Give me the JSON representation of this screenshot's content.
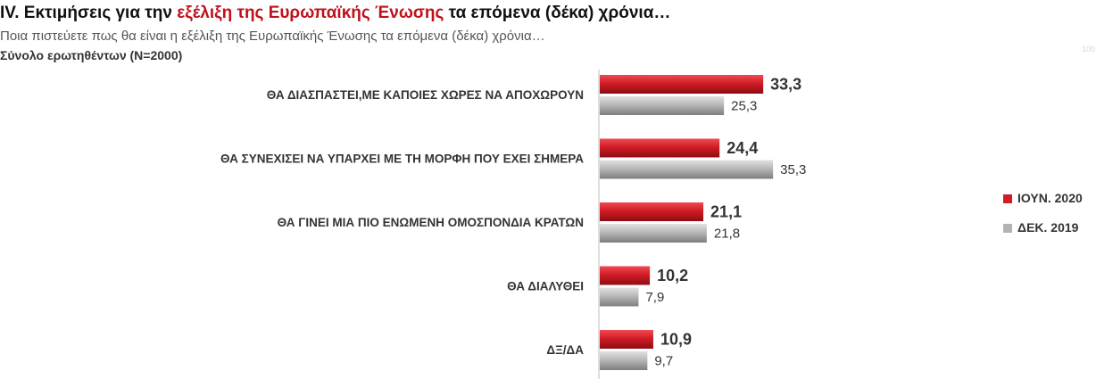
{
  "header": {
    "title_prefix": "IV. Εκτιμήσεις για την ",
    "title_highlight": "εξέλιξη της Ευρωπαϊκής Ένωσης",
    "title_suffix": " τα επόμενα (δέκα) χρόνια…",
    "subtitle": "Ποια πιστεύετε πως θα είναι η εξέλιξη της Ευρωπαϊκής Ένωσης τα επόμενα (δέκα) χρόνια…",
    "base": "Σύνολο ερωτηθέντων (Ν=2000)",
    "corner_text": "100"
  },
  "colors": {
    "highlight": "#c0101a",
    "series_red": "#d11d27",
    "series_grey": "#b3b3b3"
  },
  "chart_data": {
    "type": "bar",
    "orientation": "horizontal",
    "categories": [
      "ΘΑ ΔΙΑΣΠΑΣΤΕΙ,ΜΕ ΚΑΠΟΙΕΣ ΧΩΡΕΣ ΝΑ ΑΠΟΧΩΡΟΥΝ",
      "ΘΑ ΣΥΝΕΧΙΣΕΙ ΝΑ ΥΠΑΡΧΕΙ ΜΕ ΤΗ ΜΟΡΦΗ ΠΟΥ ΕΧΕΙ ΣΗΜΕΡΑ",
      "ΘΑ ΓΙΝΕΙ ΜΙΑ ΠΙΟ ΕΝΩΜΕΝΗ ΟΜΟΣΠΟΝΔΙΑ ΚΡΑΤΩΝ",
      "ΘΑ ΔΙΑΛΥΘΕΙ",
      "ΔΞ/ΔΑ"
    ],
    "series": [
      {
        "name": "ΙΟΥΝ. 2020",
        "values": [
          33.3,
          24.4,
          21.1,
          10.2,
          10.9
        ],
        "labels": [
          "33,3",
          "24,4",
          "21,1",
          "10,2",
          "10,9"
        ]
      },
      {
        "name": "ΔΕΚ. 2019",
        "values": [
          25.3,
          35.3,
          21.8,
          7.9,
          9.7
        ],
        "labels": [
          "25,3",
          "35,3",
          "21,8",
          "7,9",
          "9,7"
        ]
      }
    ],
    "xlim": [
      0,
      100
    ],
    "grid": false,
    "legend_position": "right"
  }
}
